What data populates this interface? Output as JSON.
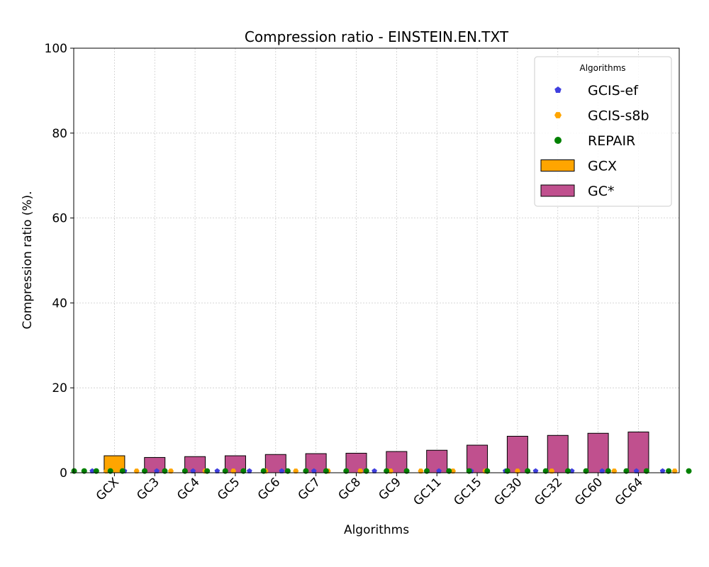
{
  "chart_data": {
    "type": "bar",
    "title": "Compression ratio -  EINSTEIN.EN.TXT",
    "xlabel": "Algorithms",
    "ylabel": "Compression ratio (%).",
    "ylim": [
      0,
      100
    ],
    "yticks": [
      0,
      20,
      40,
      60,
      80,
      100
    ],
    "grid": true,
    "categories": [
      "GCX",
      "GC3",
      "GC4",
      "GC5",
      "GC6",
      "GC7",
      "GC8",
      "GC9",
      "GC11",
      "GC15",
      "GC30",
      "GC32",
      "GC60",
      "GC64"
    ],
    "bars": {
      "values": [
        4.0,
        3.6,
        3.8,
        4.0,
        4.3,
        4.5,
        4.6,
        5.0,
        5.3,
        6.5,
        8.6,
        8.8,
        9.3,
        9.6
      ],
      "series_of": [
        "GCX",
        "GC*",
        "GC*",
        "GC*",
        "GC*",
        "GC*",
        "GC*",
        "GC*",
        "GC*",
        "GC*",
        "GC*",
        "GC*",
        "GC*",
        "GC*"
      ]
    },
    "legend": {
      "title": "Algorithms",
      "placement": "top-right",
      "entries": [
        {
          "name": "GCIS-ef",
          "kind": "marker",
          "color": "#3f3fdf",
          "shape": "pentagon"
        },
        {
          "name": "GCIS-s8b",
          "kind": "marker",
          "color": "#ffa500",
          "shape": "hexagon"
        },
        {
          "name": "REPAIR",
          "kind": "marker",
          "color": "#008000",
          "shape": "circle"
        },
        {
          "name": "GCX",
          "kind": "bar",
          "color": "#ffa500"
        },
        {
          "name": "GC*",
          "kind": "bar",
          "color": "#c0508e"
        }
      ]
    },
    "scatter_series": [
      {
        "name": "GCIS-ef",
        "color": "#3f3fdf",
        "x": [
          -0.55,
          0.25,
          1.05,
          1.95,
          2.55,
          3.35,
          4.15,
          4.95,
          5.75,
          6.45,
          7.25,
          8.05,
          8.85,
          9.7,
          10.45,
          11.35,
          12.1,
          12.95,
          13.6
        ],
        "y": [
          0.4,
          0.4,
          0.4,
          0.4,
          0.4,
          0.4,
          0.4,
          0.4,
          0.4,
          0.4,
          0.4,
          0.4,
          0.4,
          0.4,
          0.4,
          0.4,
          0.4,
          0.4,
          0.4
        ]
      },
      {
        "name": "GCIS-s8b",
        "color": "#ffa500",
        "x": [
          -0.2,
          0.55,
          1.4,
          2.25,
          2.95,
          3.75,
          4.5,
          5.3,
          6.1,
          6.85,
          7.6,
          8.4,
          9.2,
          10.0,
          10.85,
          11.7,
          12.4,
          13.2,
          13.9
        ],
        "y": [
          0.4,
          0.4,
          0.4,
          0.4,
          0.4,
          0.4,
          0.4,
          0.4,
          0.4,
          0.4,
          0.4,
          0.4,
          0.4,
          0.4,
          0.4,
          0.4,
          0.4,
          0.4,
          0.4
        ]
      },
      {
        "name": "REPAIR",
        "color": "#008000",
        "x": [
          -1.0,
          -0.75,
          -0.45,
          -0.1,
          0.2,
          0.75,
          1.25,
          1.75,
          2.3,
          2.75,
          3.2,
          3.7,
          4.3,
          4.75,
          5.25,
          5.75,
          6.25,
          6.75,
          7.25,
          7.75,
          8.3,
          8.8,
          9.25,
          9.75,
          10.25,
          10.7,
          11.25,
          11.7,
          12.25,
          12.7,
          13.2,
          13.75,
          14.25
        ],
        "y": [
          0.4,
          0.4,
          0.4,
          0.4,
          0.4,
          0.4,
          0.4,
          0.4,
          0.4,
          0.4,
          0.4,
          0.4,
          0.4,
          0.4,
          0.4,
          0.4,
          0.4,
          0.4,
          0.4,
          0.4,
          0.4,
          0.4,
          0.4,
          0.4,
          0.4,
          0.4,
          0.4,
          0.4,
          0.4,
          0.4,
          0.4,
          0.4,
          0.4
        ]
      }
    ],
    "colors": {
      "gcx": "#ffa500",
      "gcstar": "#c0508e",
      "bar_edge": "#000000"
    }
  }
}
